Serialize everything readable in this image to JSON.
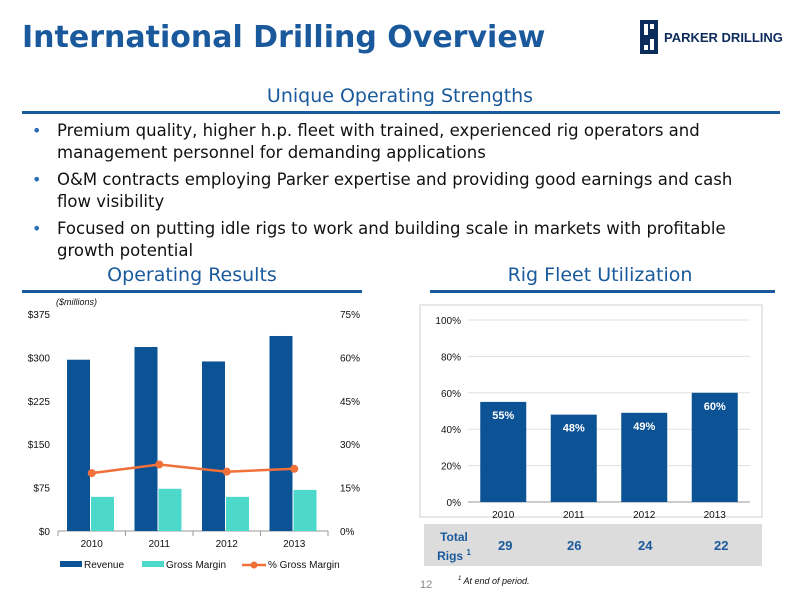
{
  "slide": {
    "title": "International Drilling Overview",
    "logo_text": "Parker Drilling",
    "section_heading": "Unique Operating Strengths",
    "bullets": [
      "Premium quality, higher h.p. fleet with trained, experienced rig operators and management personnel for demanding applications",
      "O&M contracts employing Parker expertise and providing good earnings and cash flow visibility",
      "Focused on putting idle rigs to work and building scale in markets with profitable growth potential"
    ],
    "left_heading": "Operating Results",
    "right_heading": "Rig Fleet Utilization",
    "page_number": "12",
    "footnote_mark": "1",
    "footnote": "At end of period.",
    "colors": {
      "brand_blue": "#1a5a9c",
      "revenue": "#0b5394",
      "gross_margin": "#4dd8cc",
      "pct_line": "#f0703a"
    }
  },
  "chart_data": [
    {
      "type": "bar",
      "title": "Operating Results",
      "unit_note": "($millions)",
      "categories": [
        "2010",
        "2011",
        "2012",
        "2013"
      ],
      "series": [
        {
          "name": "Revenue",
          "axis": "left",
          "values": [
            296,
            318,
            293,
            337
          ]
        },
        {
          "name": "Gross Margin",
          "axis": "left",
          "values": [
            59,
            73,
            59,
            71
          ]
        },
        {
          "name": "% Gross Margin",
          "type": "line",
          "axis": "right",
          "values": [
            20,
            23,
            20.5,
            21.5
          ]
        }
      ],
      "ylim": [
        0,
        375
      ],
      "yticks": [
        "$0",
        "$75",
        "$150",
        "$225",
        "$300",
        "$375"
      ],
      "y2lim": [
        0,
        75
      ],
      "y2ticks": [
        "0%",
        "15%",
        "30%",
        "45%",
        "60%",
        "75%"
      ],
      "legend": "bottom"
    },
    {
      "type": "bar",
      "title": "Rig Fleet Utilization",
      "categories": [
        "2010",
        "2011",
        "2012",
        "2013"
      ],
      "values": [
        55,
        48,
        49,
        60
      ],
      "value_labels": [
        "55%",
        "48%",
        "49%",
        "60%"
      ],
      "ylim": [
        0,
        100
      ],
      "yticks": [
        "0%",
        "20%",
        "40%",
        "60%",
        "80%",
        "100%"
      ],
      "grid": true,
      "table": {
        "label_line1": "Total",
        "label_line2": "Rigs",
        "label_sup": "1",
        "values": [
          "29",
          "26",
          "24",
          "22"
        ]
      }
    }
  ]
}
